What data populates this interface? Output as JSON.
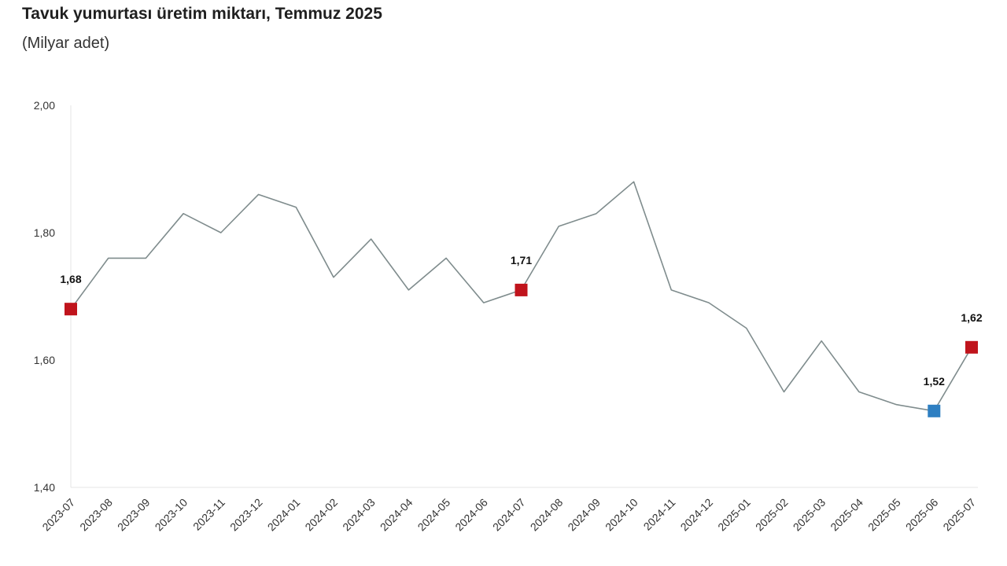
{
  "chart_data": {
    "type": "line",
    "title": "Tavuk yumurtası üretim miktarı, Temmuz 2025",
    "subtitle": "(Milyar adet)",
    "xlabel": "",
    "ylabel": "",
    "ylim": [
      1.4,
      2.0
    ],
    "yticks": [
      "1,40",
      "1,60",
      "1,80",
      "2,00"
    ],
    "ytick_values": [
      1.4,
      1.6,
      1.8,
      2.0
    ],
    "grid": false,
    "categories": [
      "2023-07",
      "2023-08",
      "2023-09",
      "2023-10",
      "2023-11",
      "2023-12",
      "2024-01",
      "2024-02",
      "2024-03",
      "2024-04",
      "2024-05",
      "2024-06",
      "2024-07",
      "2024-08",
      "2024-09",
      "2024-10",
      "2024-11",
      "2024-12",
      "2025-01",
      "2025-02",
      "2025-03",
      "2025-04",
      "2025-05",
      "2025-06",
      "2025-07"
    ],
    "series": [
      {
        "values": [
          1.68,
          1.76,
          1.76,
          1.83,
          1.8,
          1.86,
          1.84,
          1.73,
          1.79,
          1.71,
          1.76,
          1.69,
          1.71,
          1.81,
          1.83,
          1.88,
          1.71,
          1.69,
          1.65,
          1.55,
          1.63,
          1.55,
          1.53,
          1.52,
          1.62
        ],
        "color": "#7f8c8d"
      }
    ],
    "highlights": [
      {
        "index": 0,
        "label": "1,68",
        "color": "#c0141c"
      },
      {
        "index": 12,
        "label": "1,71",
        "color": "#c0141c"
      },
      {
        "index": 23,
        "label": "1,52",
        "color": "#2e7fc2"
      },
      {
        "index": 24,
        "label": "1,62",
        "color": "#c0141c"
      }
    ]
  }
}
